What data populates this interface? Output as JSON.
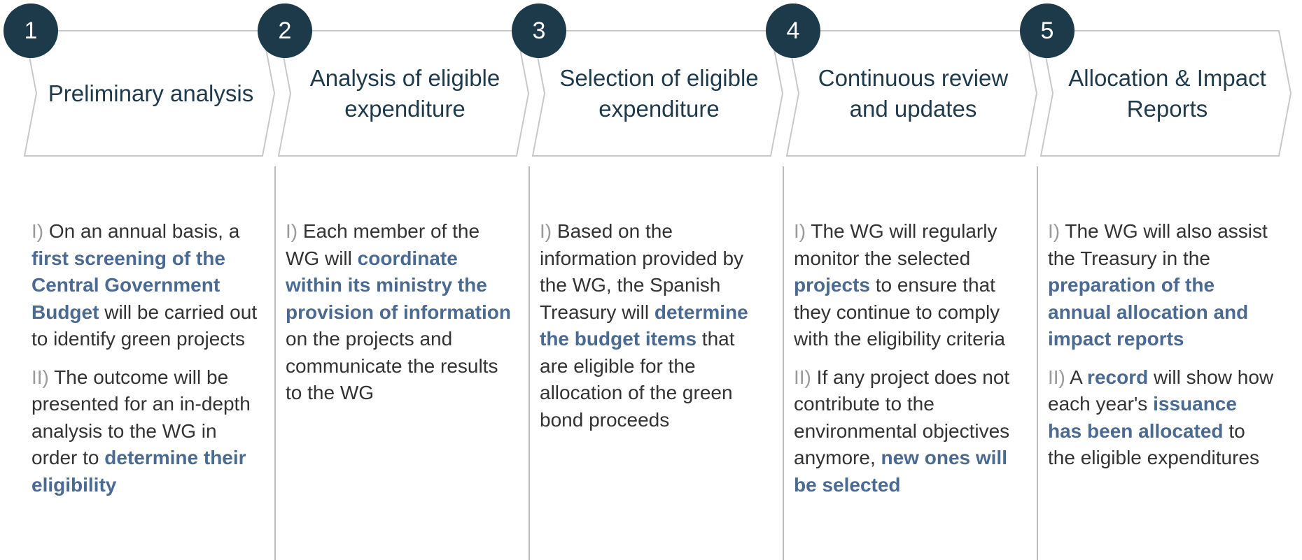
{
  "steps": [
    {
      "number": "1",
      "title": "Preliminary analysis",
      "paragraphs": [
        {
          "numeral": "I)",
          "parts": [
            {
              "text": " On an annual basis, a ",
              "bold": false
            },
            {
              "text": "first screening of the Central Government Budget",
              "bold": true
            },
            {
              "text": " will be carried out to identify green projects",
              "bold": false
            }
          ]
        },
        {
          "numeral": "II)",
          "parts": [
            {
              "text": " The outcome will be presented for an in-depth analysis to the WG in order to ",
              "bold": false
            },
            {
              "text": "determine their eligibility",
              "bold": true
            }
          ]
        }
      ]
    },
    {
      "number": "2",
      "title": "Analysis of eligible expenditure",
      "paragraphs": [
        {
          "numeral": "I)",
          "parts": [
            {
              "text": " Each member of the WG will ",
              "bold": false
            },
            {
              "text": "coordinate within its ministry the provision of information",
              "bold": true
            },
            {
              "text": " on the projects and communicate the results to the WG",
              "bold": false
            }
          ]
        }
      ]
    },
    {
      "number": "3",
      "title": "Selection of eligible expenditure",
      "paragraphs": [
        {
          "numeral": "I)",
          "parts": [
            {
              "text": " Based on the information provided by the WG, the Spanish Treasury will ",
              "bold": false
            },
            {
              "text": "determine the budget items",
              "bold": true
            },
            {
              "text": " that are eligible for the allocation of the green bond proceeds",
              "bold": false
            }
          ]
        }
      ]
    },
    {
      "number": "4",
      "title": "Continuous review and updates",
      "paragraphs": [
        {
          "numeral": "I)",
          "parts": [
            {
              "text": " The WG will regularly monitor the selected ",
              "bold": false
            },
            {
              "text": "projects",
              "bold": true
            },
            {
              "text": " to ensure that they continue to comply with the eligibility criteria",
              "bold": false
            }
          ]
        },
        {
          "numeral": "II)",
          "parts": [
            {
              "text": " If any project does not contribute to the environmental objectives anymore, ",
              "bold": false
            },
            {
              "text": "new ones will be selected",
              "bold": true
            }
          ]
        }
      ]
    },
    {
      "number": "5",
      "title": "Allocation & Impact Reports",
      "paragraphs": [
        {
          "numeral": "I)",
          "parts": [
            {
              "text": " The WG will also assist the Treasury in the ",
              "bold": false
            },
            {
              "text": "preparation of the annual allocation and impact reports",
              "bold": true
            }
          ]
        },
        {
          "numeral": "II)",
          "parts": [
            {
              "text": " A ",
              "bold": false
            },
            {
              "text": "record",
              "bold": true
            },
            {
              "text": " will show how each year's ",
              "bold": false
            },
            {
              "text": "issuance has been allocated",
              "bold": true
            },
            {
              "text": " to the eligible expenditures",
              "bold": false
            }
          ]
        }
      ]
    }
  ]
}
